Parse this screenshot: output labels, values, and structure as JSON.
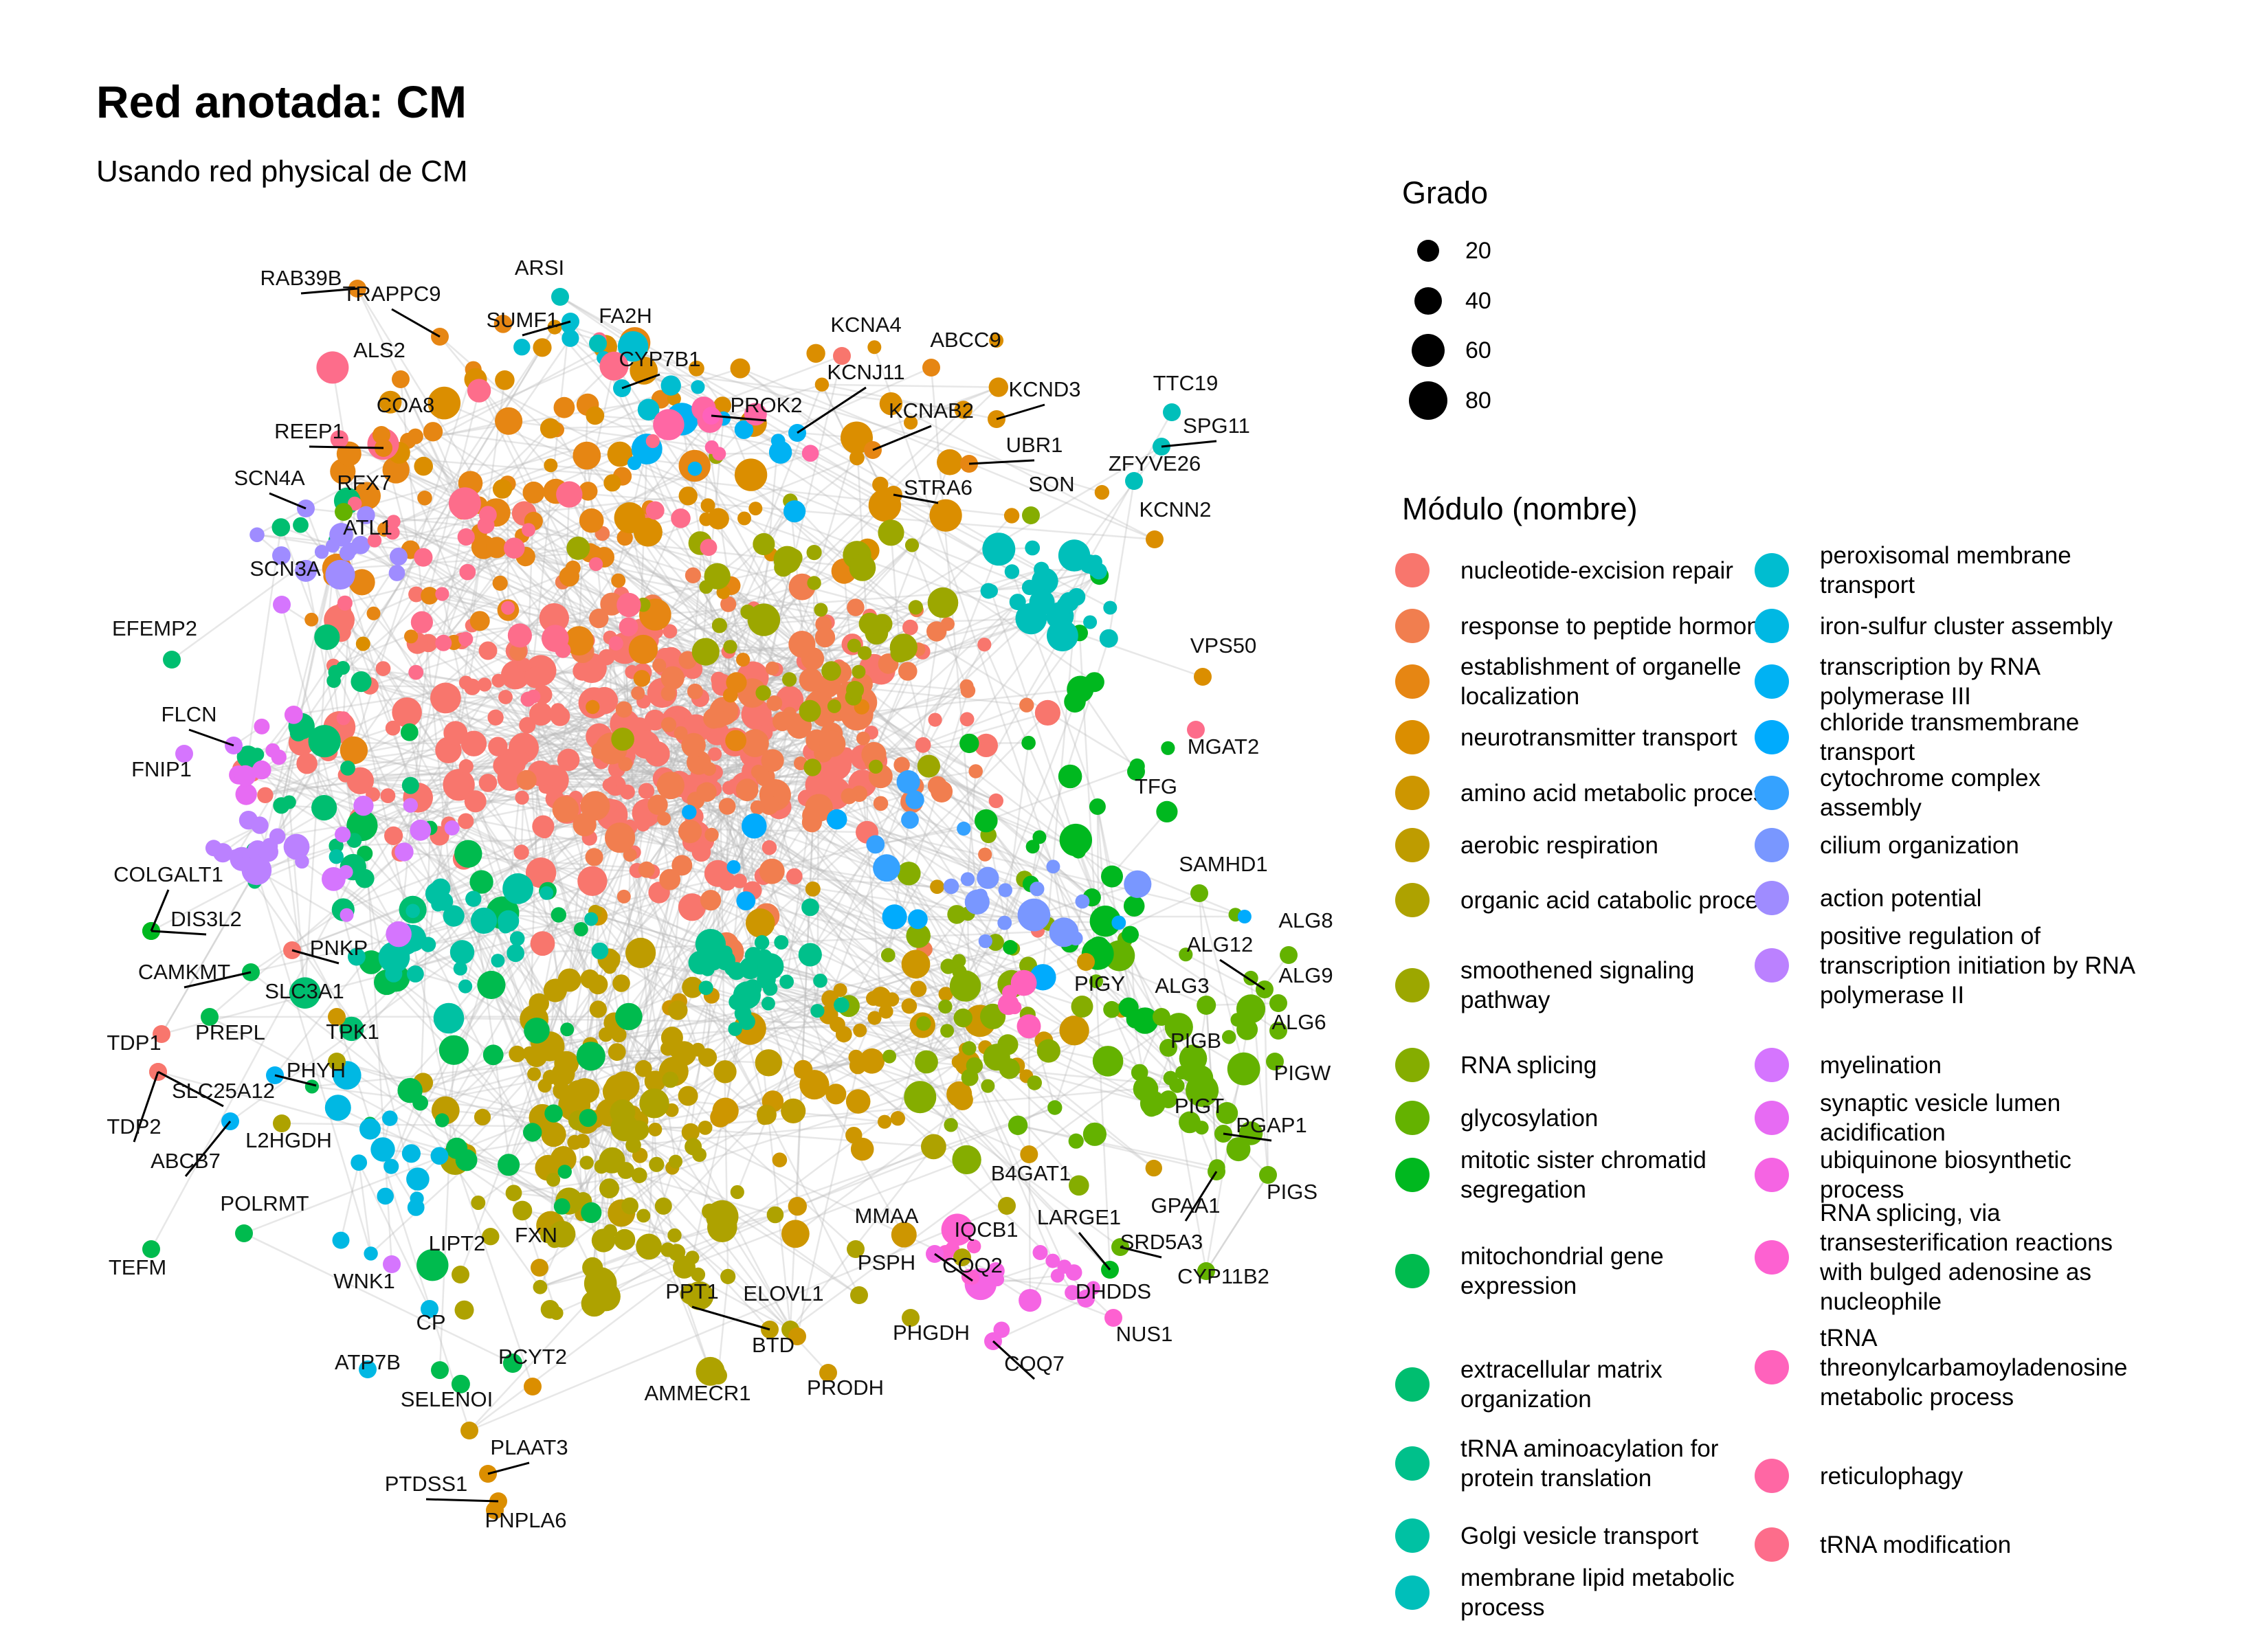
{
  "title": "Red anotada: CM",
  "subtitle": "Usando red physical de CM",
  "size_legend": {
    "title": "Grado",
    "items": [
      {
        "label": "20",
        "value": 20
      },
      {
        "label": "40",
        "value": 40
      },
      {
        "label": "60",
        "value": 60
      },
      {
        "label": "80",
        "value": 80
      }
    ]
  },
  "module_legend": {
    "title": "Módulo (nombre)",
    "items": [
      {
        "label": "nucleotide-excision repair",
        "color": "#F8766D"
      },
      {
        "label": "response to peptide hormone",
        "color": "#F17E4F"
      },
      {
        "label": "establishment of organelle localization",
        "color": "#E68613"
      },
      {
        "label": "neurotransmitter transport",
        "color": "#DB8E00"
      },
      {
        "label": "amino acid metabolic process",
        "color": "#CD9600"
      },
      {
        "label": "aerobic respiration",
        "color": "#BE9C00"
      },
      {
        "label": "organic acid catabolic process",
        "color": "#AEA200"
      },
      {
        "label": "smoothened signaling pathway",
        "color": "#9CA700"
      },
      {
        "label": "RNA splicing",
        "color": "#85AD00"
      },
      {
        "label": "glycosylation",
        "color": "#64B200"
      },
      {
        "label": "mitotic sister chromatid segregation",
        "color": "#00B81F"
      },
      {
        "label": "mitochondrial gene expression",
        "color": "#00BB4E"
      },
      {
        "label": "extracellular matrix organization",
        "color": "#00BE70"
      },
      {
        "label": "tRNA aminoacylation for protein translation",
        "color": "#00C08B"
      },
      {
        "label": "Golgi vesicle transport",
        "color": "#00C1A3"
      },
      {
        "label": "membrane lipid metabolic process",
        "color": "#00BFBA"
      },
      {
        "label": "peroxisomal membrane transport",
        "color": "#00BDD0"
      },
      {
        "label": "iron-sulfur cluster assembly",
        "color": "#00B8E3"
      },
      {
        "label": "transcription by RNA polymerase III",
        "color": "#00B2F3"
      },
      {
        "label": "chloride transmembrane transport",
        "color": "#00ABFD"
      },
      {
        "label": "cytochrome complex assembly",
        "color": "#35A2FF"
      },
      {
        "label": "cilium organization",
        "color": "#7997FF"
      },
      {
        "label": "action potential",
        "color": "#9F8CFF"
      },
      {
        "label": "positive regulation of transcription initiation by RNA polymerase II",
        "color": "#BB81FF"
      },
      {
        "label": "myelination",
        "color": "#D575FE"
      },
      {
        "label": "synaptic vesicle lumen acidification",
        "color": "#E76BF3"
      },
      {
        "label": "ubiquinone biosynthetic process",
        "color": "#F564E3"
      },
      {
        "label": "RNA splicing, via transesterification reactions with bulged adenosine as nucleophile",
        "color": "#FD61D1"
      },
      {
        "label": "tRNA threonylcarbamoyladenosine metabolic process",
        "color": "#FF62BC"
      },
      {
        "label": "reticulophagy",
        "color": "#FF67A4"
      },
      {
        "label": "tRNA modification",
        "color": "#FD6D8B"
      }
    ]
  },
  "gene_labels": [
    "RAB39B",
    "TRAPPC9",
    "ARSI",
    "SUMF1",
    "FA2H",
    "ALS2",
    "CYP7B1",
    "KCNA4",
    "ABCC9",
    "KCNJ11",
    "COA8",
    "PROK2",
    "KCNAB2",
    "KCND3",
    "TTC19",
    "SPG11",
    "REEP1",
    "UBR1",
    "ZFYVE26",
    "SCN4A",
    "RFX7",
    "STRA6",
    "SON",
    "KCNN2",
    "ATL1",
    "SCN3A",
    "EFEMP2",
    "VPS50",
    "FLCN",
    "MGAT2",
    "FNIP1",
    "TFG",
    "SAMHD1",
    "COLGALT1",
    "DIS3L2",
    "ALG8",
    "ALG12",
    "ALG9",
    "CAMKMT",
    "PNKP",
    "SLC3A1",
    "PIGY",
    "ALG3",
    "ALG6",
    "PREPL",
    "TPK1",
    "PIGB",
    "TDP1",
    "PHYH",
    "SLC25A12",
    "PIGW",
    "PIGT",
    "TDP2",
    "L2HGDH",
    "PGAP1",
    "ABCB7",
    "B4GAT1",
    "POLRMT",
    "PIGS",
    "GPAA1",
    "LARGE1",
    "MMAA",
    "IQCB1",
    "SRD5A3",
    "LIPT2",
    "FXN",
    "TEFM",
    "PSPH",
    "COQ2",
    "DHDDS",
    "CYP11B2",
    "WNK1",
    "PPT1",
    "ELOVL1",
    "NUS1",
    "CP",
    "BTD",
    "PHGDH",
    "COQ7",
    "ATP7B",
    "PCYT2",
    "AMMECR1",
    "PRODH",
    "SELENOI",
    "PLAAT3",
    "PTDSS1",
    "PNPLA6"
  ]
}
